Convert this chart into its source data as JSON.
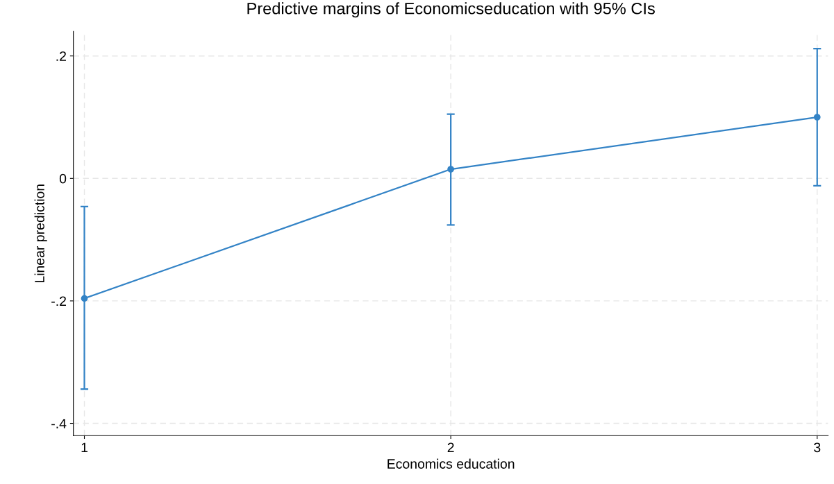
{
  "chart_data": {
    "type": "line",
    "title": "Predictive margins of Economicseducation with 95% CIs",
    "xlabel": "Economics education",
    "ylabel": "Linear prediction",
    "x": [
      1,
      2,
      3
    ],
    "series": [
      {
        "color": "#3383c6",
        "values": [
          -0.196,
          0.015,
          0.1
        ],
        "errors": [
          [
            -0.344,
            -0.046
          ],
          [
            -0.076,
            0.105
          ],
          [
            -0.012,
            0.212
          ]
        ]
      }
    ],
    "xlim": [
      0.97,
      3.03
    ],
    "xticks": [
      1,
      2,
      3
    ],
    "ylim": [
      -0.42,
      0.24
    ],
    "yticks": [
      {
        "value": -0.4,
        "label": "-.4"
      },
      {
        "value": -0.2,
        "label": "-.2"
      },
      0,
      {
        "value": 0.2,
        "label": ".2"
      }
    ],
    "grid": true,
    "marker": "circle",
    "line_style": "solid",
    "legend": false
  }
}
